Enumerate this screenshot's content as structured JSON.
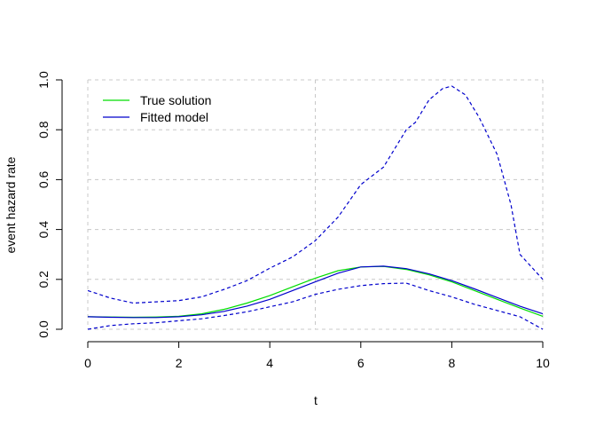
{
  "chart_data": {
    "type": "line",
    "xlabel": "t",
    "ylabel": "event hazard rate",
    "xlim": [
      0,
      10
    ],
    "ylim": [
      0,
      1
    ],
    "x_ticks": [
      "0",
      "2",
      "4",
      "6",
      "8",
      "10"
    ],
    "y_ticks": [
      "0.0",
      "0.2",
      "0.4",
      "0.6",
      "0.8",
      "1.0"
    ],
    "grid": true,
    "legend_position": "top-left",
    "legend": [
      {
        "label": "True solution",
        "color": "#00dd00"
      },
      {
        "label": "Fitted model",
        "color": "#0000cc"
      }
    ],
    "series": [
      {
        "name": "True solution",
        "color": "#00dd00",
        "style": "solid",
        "x": [
          0,
          0.5,
          1,
          1.5,
          2,
          2.5,
          3,
          3.5,
          4,
          4.5,
          5,
          5.5,
          6,
          6.5,
          7,
          7.5,
          8,
          8.5,
          9,
          9.5,
          10
        ],
        "y": [
          0.05,
          0.049,
          0.048,
          0.049,
          0.052,
          0.062,
          0.08,
          0.105,
          0.135,
          0.17,
          0.205,
          0.235,
          0.25,
          0.252,
          0.24,
          0.218,
          0.19,
          0.155,
          0.12,
          0.085,
          0.052
        ]
      },
      {
        "name": "Fitted model",
        "color": "#0000cc",
        "style": "solid",
        "x": [
          0,
          0.5,
          1,
          1.5,
          2,
          2.5,
          3,
          3.5,
          4,
          4.5,
          5,
          5.5,
          6,
          6.5,
          7,
          7.5,
          8,
          8.5,
          9,
          9.5,
          10
        ],
        "y": [
          0.05,
          0.048,
          0.047,
          0.047,
          0.05,
          0.058,
          0.072,
          0.093,
          0.12,
          0.155,
          0.19,
          0.225,
          0.25,
          0.253,
          0.243,
          0.222,
          0.195,
          0.162,
          0.127,
          0.092,
          0.062
        ]
      },
      {
        "name": "",
        "color": "#0000cc",
        "style": "dashed",
        "x": [
          0,
          0.5,
          1,
          1.5,
          2,
          2.5,
          3,
          3.5,
          4,
          4.5,
          5,
          5.5,
          6,
          6.5,
          7,
          7.2,
          7.5,
          7.8,
          8,
          8.3,
          8.6,
          9,
          9.3,
          9.5,
          9.7,
          10
        ],
        "y": [
          0.155,
          0.125,
          0.105,
          0.11,
          0.115,
          0.13,
          0.16,
          0.195,
          0.245,
          0.29,
          0.355,
          0.45,
          0.58,
          0.65,
          0.8,
          0.83,
          0.92,
          0.965,
          0.975,
          0.94,
          0.85,
          0.7,
          0.5,
          0.3,
          0.26,
          0.2
        ]
      },
      {
        "name": "",
        "color": "#0000cc",
        "style": "dashed",
        "x": [
          0,
          0.5,
          1,
          1.5,
          2,
          2.5,
          3,
          3.5,
          4,
          4.5,
          5,
          5.5,
          6,
          6.5,
          7,
          7.5,
          8,
          8.5,
          9,
          9.5,
          10
        ],
        "y": [
          0.0,
          0.015,
          0.022,
          0.026,
          0.034,
          0.042,
          0.055,
          0.07,
          0.09,
          0.11,
          0.14,
          0.16,
          0.175,
          0.183,
          0.185,
          0.155,
          0.13,
          0.1,
          0.075,
          0.05,
          0.0
        ]
      }
    ]
  }
}
